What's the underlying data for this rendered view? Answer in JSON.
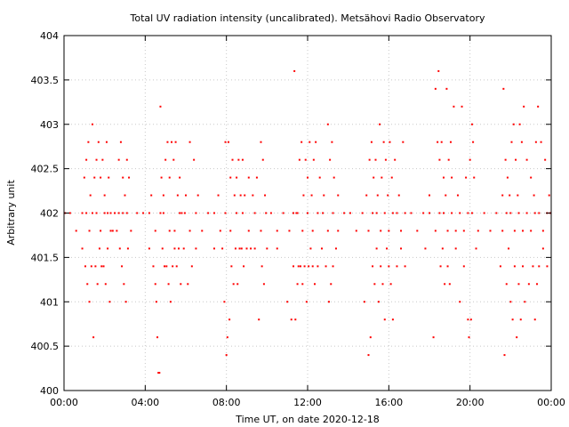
{
  "chart_data": {
    "type": "scatter",
    "title": "Total UV radiation intensity (uncalibrated). Metsähovi Radio Observatory",
    "xlabel": "Time UT, on date 2020-12-18",
    "ylabel": "Arbitrary unit",
    "xlim": [
      0,
      24
    ],
    "ylim": [
      400,
      404
    ],
    "x_unit": "hours UT",
    "x_tick_values": [
      0,
      4,
      8,
      12,
      16,
      20,
      24
    ],
    "x_tick_labels": [
      "00:00",
      "04:00",
      "08:00",
      "12:00",
      "16:00",
      "20:00",
      "00:00"
    ],
    "y_tick_values": [
      400,
      400.5,
      401,
      401.5,
      402,
      402.5,
      403,
      403.5,
      404
    ],
    "y_tick_labels": [
      "400",
      "400.5",
      "401",
      "401.5",
      "402",
      "402.5",
      "403",
      "403.5",
      "404"
    ],
    "grid": true,
    "legend": "none",
    "marker_color": "#ff0000",
    "series": [
      {
        "x": [
          0.05,
          0.3,
          0.6,
          0.9,
          1.1,
          1.25,
          1.4,
          1.6,
          1.8,
          2.0,
          2.15,
          2.3,
          2.5,
          2.7,
          2.9,
          3.1,
          3.3,
          3.6,
          3.9,
          4.2,
          4.5,
          4.75,
          4.9,
          5.2,
          5.45,
          5.7,
          5.95,
          6.2,
          6.5,
          6.8,
          7.1,
          7.4,
          7.7,
          7.95,
          8.2,
          8.5,
          8.8,
          9.1,
          9.4,
          9.7,
          9.95,
          10.2,
          10.5,
          10.8,
          11.1,
          11.3,
          11.5,
          11.75,
          12.0,
          12.25,
          12.5,
          12.75,
          13.0,
          13.25,
          13.5,
          13.8,
          14.1,
          14.4,
          14.7,
          15.0,
          15.2,
          15.4,
          15.6,
          15.8,
          16.0,
          16.2,
          16.4,
          16.6,
          16.8,
          17.1,
          17.4,
          17.7,
          18.0,
          18.3,
          18.5,
          18.7,
          18.9,
          19.1,
          19.3,
          19.5,
          19.7,
          19.9,
          20.1,
          20.4,
          20.7,
          21.0,
          21.3,
          21.6,
          21.8,
          22.0,
          22.2,
          22.4,
          22.6,
          22.8,
          23.0,
          23.2,
          23.4,
          23.6,
          23.8,
          23.95
        ],
        "y": [
          402,
          402,
          401.8,
          402,
          402,
          401.8,
          402,
          402,
          401.8,
          402,
          402,
          401.8,
          402,
          402,
          402,
          402,
          401.8,
          402,
          402,
          402,
          401.8,
          402,
          402,
          401.8,
          401.8,
          402,
          402,
          401.8,
          402,
          401.8,
          402,
          402,
          401.8,
          402,
          401.8,
          402,
          402,
          401.8,
          402,
          401.8,
          402,
          402,
          401.8,
          402,
          401.8,
          402,
          402,
          401.8,
          402,
          401.8,
          402,
          402,
          401.8,
          402,
          401.8,
          402,
          402,
          401.8,
          402,
          401.8,
          402,
          402,
          401.8,
          402,
          401.8,
          402,
          402,
          401.8,
          402,
          402,
          401.8,
          402,
          402,
          401.8,
          402,
          402,
          401.8,
          402,
          401.8,
          402,
          401.8,
          402,
          402,
          401.8,
          402,
          401.8,
          402,
          401.8,
          402,
          402,
          401.8,
          402,
          401.8,
          402,
          401.8,
          402,
          402,
          401.8,
          402,
          402
        ]
      },
      {
        "x": [
          0.9,
          1.0,
          1.05,
          1.1,
          1.15,
          1.2,
          1.25,
          1.3,
          1.35,
          1.4,
          1.45,
          1.5,
          1.55,
          1.6,
          1.65,
          1.7,
          1.75,
          1.8,
          1.85,
          1.9,
          1.95,
          2.0,
          2.05,
          2.1,
          2.15,
          2.2,
          2.25,
          2.3,
          2.4,
          2.5,
          2.6,
          2.7,
          2.75,
          2.8,
          2.85,
          2.9,
          2.95,
          3.0,
          3.05,
          3.1,
          3.15,
          3.2
        ],
        "y": [
          401.6,
          402.4,
          401.4,
          402.6,
          401.2,
          402.8,
          401,
          402.2,
          401.4,
          403,
          400.6,
          402.4,
          401.4,
          402.6,
          401.2,
          402.8,
          401.6,
          402.4,
          401.4,
          402.6,
          401.4,
          402.2,
          401.2,
          402.8,
          401.6,
          402.4,
          401,
          402,
          401.8,
          402,
          401.8,
          402.6,
          401.6,
          402.8,
          401.4,
          402.4,
          401.2,
          402.2,
          401,
          402.6,
          401.6,
          402.4
        ]
      },
      {
        "x": [
          4.2,
          4.3,
          4.4,
          4.5,
          4.55,
          4.6,
          4.65,
          4.7,
          4.75,
          4.8,
          4.85,
          4.9,
          4.95,
          5.0,
          5.05,
          5.1,
          5.15,
          5.2,
          5.25,
          5.3,
          5.35,
          5.4,
          5.45,
          5.5,
          5.55,
          5.6,
          5.65,
          5.7,
          5.75,
          5.8,
          5.9,
          6.0,
          6.1,
          6.2,
          6.3,
          6.4,
          6.5,
          6.6
        ],
        "y": [
          401.6,
          402.2,
          401.4,
          401.2,
          401,
          400.6,
          400.2,
          400.2,
          403.2,
          402.4,
          401.6,
          402.2,
          401.4,
          402.6,
          401.4,
          402.8,
          401.2,
          402.4,
          401,
          402.8,
          401.4,
          402.6,
          401.6,
          402.8,
          401.4,
          402.2,
          401.6,
          402.4,
          401.2,
          402,
          401.6,
          402.2,
          401.2,
          402.8,
          401.4,
          402.6,
          401.6,
          402.2
        ]
      },
      {
        "x": [
          7.4,
          7.6,
          7.8,
          7.9,
          7.95,
          8.0,
          8.05,
          8.1,
          8.15,
          8.2,
          8.25,
          8.3,
          8.35,
          8.4,
          8.45,
          8.5,
          8.55,
          8.6,
          8.65,
          8.7,
          8.75,
          8.8,
          8.85,
          8.9,
          9.0,
          9.1,
          9.2,
          9.3,
          9.4,
          9.5,
          9.6,
          9.7,
          9.75,
          9.8,
          9.85,
          9.9,
          10.0
        ],
        "y": [
          401.6,
          402.2,
          401.6,
          401,
          402.8,
          400.4,
          400.6,
          402.8,
          400.8,
          402.4,
          401.4,
          402.6,
          401.2,
          402.2,
          401.6,
          402.4,
          401.2,
          402.6,
          401.6,
          402.2,
          401.6,
          402.6,
          401.4,
          402.2,
          401.6,
          402.4,
          401.6,
          402.2,
          401.6,
          402.4,
          400.8,
          402.8,
          401.4,
          402.6,
          401.2,
          402.2,
          401.6
        ]
      },
      {
        "x": [
          10.5,
          11.0,
          11.2,
          11.3,
          11.35,
          11.4,
          11.45,
          11.5,
          11.55,
          11.6,
          11.65,
          11.7,
          11.75,
          11.8,
          11.85,
          11.9,
          11.95,
          12.0,
          12.05,
          12.1,
          12.15,
          12.2,
          12.25,
          12.3,
          12.35,
          12.4,
          12.5,
          12.6,
          12.7,
          12.8,
          12.9,
          13.0,
          13.05,
          13.1,
          13.15,
          13.2,
          13.25,
          13.3,
          13.4,
          13.5
        ],
        "y": [
          401.6,
          401,
          400.8,
          401.4,
          403.6,
          400.8,
          402,
          401.2,
          401.4,
          402.6,
          401.4,
          402.8,
          401.2,
          402.2,
          401.4,
          402.6,
          401,
          402.4,
          401.4,
          402.8,
          401.6,
          402.2,
          401.4,
          402.6,
          401.2,
          402.8,
          401.4,
          402.4,
          401.6,
          402.2,
          401.4,
          403,
          401,
          402.6,
          401.2,
          402.8,
          401.4,
          402.4,
          401.6,
          402.2
        ]
      },
      {
        "x": [
          14.8,
          14.9,
          15.0,
          15.05,
          15.1,
          15.15,
          15.2,
          15.25,
          15.3,
          15.35,
          15.4,
          15.45,
          15.5,
          15.55,
          15.6,
          15.65,
          15.7,
          15.75,
          15.8,
          15.85,
          15.9,
          15.95,
          16.0,
          16.05,
          16.1,
          16.15,
          16.2,
          16.3,
          16.4,
          16.5,
          16.6,
          16.7,
          16.8
        ],
        "y": [
          401,
          402.2,
          400.4,
          402.6,
          400.6,
          402.8,
          401.4,
          402.4,
          401.2,
          402.6,
          401.6,
          402.2,
          401,
          403,
          401.4,
          402.4,
          401.2,
          402.8,
          400.8,
          402.6,
          401.6,
          402.2,
          401.4,
          402.8,
          401.2,
          402.4,
          400.8,
          402.6,
          401.4,
          402.2,
          401.6,
          402.8,
          401.4
        ]
      },
      {
        "x": [
          17.8,
          18.0,
          18.2,
          18.3,
          18.4,
          18.45,
          18.5,
          18.55,
          18.6,
          18.65,
          18.7,
          18.75,
          18.8,
          18.85,
          18.9,
          18.95,
          19.0,
          19.05,
          19.1,
          19.2,
          19.3,
          19.4,
          19.5,
          19.6,
          19.7,
          19.8,
          19.9,
          19.95,
          20.0,
          20.05,
          20.1,
          20.15,
          20.2,
          20.3
        ],
        "y": [
          401.6,
          402.2,
          400.6,
          403.4,
          402.8,
          403.6,
          402.6,
          401.4,
          402.8,
          401.6,
          402.4,
          401.2,
          402.2,
          403.4,
          401.4,
          402.6,
          401.2,
          402.8,
          402.4,
          403.2,
          401.6,
          402.2,
          401,
          403.2,
          401.4,
          402.4,
          400.8,
          400.6,
          402.6,
          400.8,
          403,
          402.8,
          402.4,
          401.6
        ]
      },
      {
        "x": [
          21.5,
          21.6,
          21.65,
          21.7,
          21.75,
          21.8,
          21.85,
          21.9,
          21.95,
          22.0,
          22.05,
          22.1,
          22.15,
          22.2,
          22.25,
          22.3,
          22.35,
          22.4,
          22.45,
          22.5,
          22.55,
          22.6,
          22.65,
          22.7,
          22.8,
          22.9,
          23.0,
          23.1,
          23.15,
          23.2,
          23.25,
          23.3,
          23.35,
          23.4,
          23.5,
          23.6,
          23.7,
          23.8,
          23.9
        ],
        "y": [
          401.4,
          402.2,
          403.4,
          400.4,
          402.6,
          401.2,
          402.4,
          401.6,
          402.2,
          401,
          402.8,
          400.8,
          403,
          401.4,
          402.6,
          400.6,
          402.2,
          401.2,
          403,
          400.8,
          402.8,
          401.4,
          403.2,
          401,
          402.6,
          401.2,
          402.4,
          401.4,
          402.2,
          400.8,
          402.8,
          401.2,
          403.2,
          401.4,
          402.8,
          401.6,
          402.6,
          401.4,
          402.2
        ]
      }
    ]
  }
}
